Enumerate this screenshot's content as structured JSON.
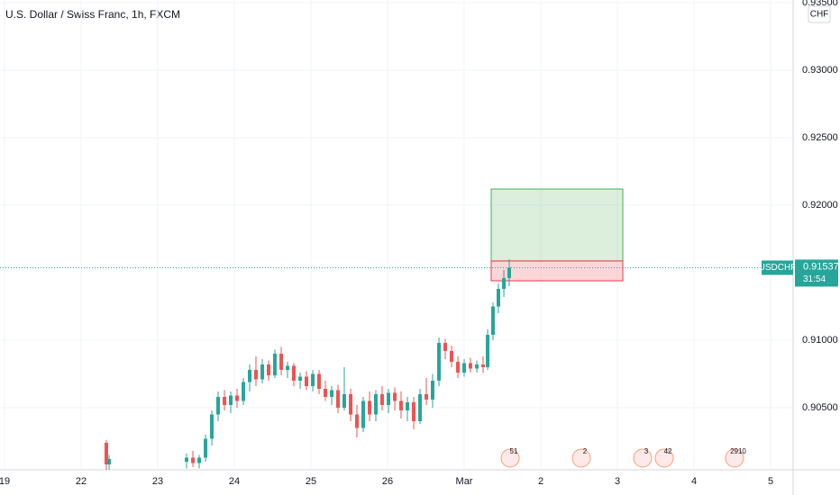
{
  "chart_data": {
    "type": "candlestick",
    "title": "U.S. Dollar / Swiss Franc, 1h, FXCM",
    "symbol": "USDCHF",
    "currency": "CHF",
    "last_price": 0.91537,
    "countdown": "31:54",
    "up_color": "#26a69a",
    "down_color": "#ef5350",
    "xlim": [
      -0.059,
      10.294
    ],
    "ylim": [
      0.9004,
      0.9352
    ],
    "xticks": [
      {
        "value": 0,
        "label": "19"
      },
      {
        "value": 1,
        "label": "22"
      },
      {
        "value": 2,
        "label": "23"
      },
      {
        "value": 3,
        "label": "24"
      },
      {
        "value": 4,
        "label": "25"
      },
      {
        "value": 5,
        "label": "26"
      },
      {
        "value": 6,
        "label": "Mar"
      },
      {
        "value": 7,
        "label": "2"
      },
      {
        "value": 8,
        "label": "3"
      },
      {
        "value": 9,
        "label": "4"
      },
      {
        "value": 10,
        "label": "5"
      }
    ],
    "yticks": [
      {
        "value": 0.935,
        "label": "0.93500"
      },
      {
        "value": 0.93,
        "label": "0.93000"
      },
      {
        "value": 0.925,
        "label": "0.92500"
      },
      {
        "value": 0.92,
        "label": "0.92000"
      },
      {
        "value": 0.91,
        "label": "0.91000"
      },
      {
        "value": 0.905,
        "label": "0.90500"
      }
    ],
    "grid": true,
    "x": [
      1.329,
      1.365,
      2.376,
      2.459,
      2.541,
      2.624,
      2.706,
      2.788,
      2.871,
      2.953,
      3.035,
      3.118,
      3.2,
      3.282,
      3.365,
      3.447,
      3.529,
      3.612,
      3.694,
      3.776,
      3.859,
      3.941,
      4.024,
      4.106,
      4.188,
      4.271,
      4.353,
      4.435,
      4.518,
      4.6,
      4.682,
      4.765,
      4.847,
      4.929,
      5.012,
      5.094,
      5.176,
      5.259,
      5.341,
      5.424,
      5.506,
      5.588,
      5.671,
      5.753,
      5.835,
      5.918,
      6.0,
      6.082,
      6.165,
      6.247,
      6.306,
      6.376,
      6.447,
      6.518,
      6.588
    ],
    "open": [
      0.9024,
      0.9008,
      0.901,
      0.9013,
      0.9009,
      0.9013,
      0.9027,
      0.9045,
      0.9058,
      0.9052,
      0.9059,
      0.9055,
      0.9069,
      0.9078,
      0.9071,
      0.9082,
      0.9074,
      0.909,
      0.9078,
      0.9081,
      0.907,
      0.9073,
      0.9066,
      0.9075,
      0.9064,
      0.9058,
      0.9063,
      0.905,
      0.906,
      0.9045,
      0.9035,
      0.9055,
      0.9045,
      0.906,
      0.9052,
      0.9061,
      0.9055,
      0.9048,
      0.9054,
      0.904,
      0.906,
      0.9056,
      0.907,
      0.9098,
      0.9092,
      0.9084,
      0.9076,
      0.9083,
      0.9079,
      0.9082,
      0.908,
      0.9104,
      0.9125,
      0.9138,
      0.9146
    ],
    "high": [
      0.9026,
      0.9015,
      0.9016,
      0.9018,
      0.9015,
      0.903,
      0.9048,
      0.9062,
      0.9063,
      0.9062,
      0.9064,
      0.9072,
      0.9082,
      0.9088,
      0.9086,
      0.9085,
      0.9093,
      0.9095,
      0.9084,
      0.9083,
      0.9076,
      0.9077,
      0.9078,
      0.9078,
      0.907,
      0.9066,
      0.9067,
      0.908,
      0.9064,
      0.9052,
      0.9058,
      0.9062,
      0.9063,
      0.9066,
      0.9064,
      0.9065,
      0.9062,
      0.9058,
      0.9058,
      0.9064,
      0.9072,
      0.9075,
      0.9102,
      0.9101,
      0.9096,
      0.9088,
      0.9086,
      0.9087,
      0.9085,
      0.9088,
      0.9108,
      0.9128,
      0.9142,
      0.9152,
      0.916
    ],
    "low": [
      0.9004,
      0.9004,
      0.9005,
      0.9006,
      0.9005,
      0.901,
      0.9022,
      0.904,
      0.9048,
      0.9046,
      0.905,
      0.9052,
      0.9062,
      0.9066,
      0.9068,
      0.907,
      0.9072,
      0.9074,
      0.9072,
      0.9066,
      0.9064,
      0.9063,
      0.9062,
      0.906,
      0.9055,
      0.9052,
      0.9046,
      0.9048,
      0.904,
      0.9028,
      0.9032,
      0.904,
      0.904,
      0.9048,
      0.9046,
      0.9048,
      0.9042,
      0.904,
      0.9034,
      0.9038,
      0.9052,
      0.905,
      0.9066,
      0.9086,
      0.908,
      0.9072,
      0.9073,
      0.9076,
      0.9076,
      0.9076,
      0.9078,
      0.91,
      0.912,
      0.9132,
      0.914
    ],
    "close": [
      0.9008,
      0.9012,
      0.9013,
      0.9009,
      0.9013,
      0.9027,
      0.9045,
      0.9058,
      0.9052,
      0.9059,
      0.9055,
      0.9069,
      0.9078,
      0.9071,
      0.9082,
      0.9074,
      0.909,
      0.9078,
      0.9081,
      0.907,
      0.9073,
      0.9066,
      0.9075,
      0.9064,
      0.9058,
      0.9063,
      0.905,
      0.906,
      0.9045,
      0.9035,
      0.9055,
      0.9045,
      0.906,
      0.9052,
      0.9061,
      0.9055,
      0.9048,
      0.9054,
      0.904,
      0.906,
      0.9056,
      0.907,
      0.9098,
      0.9092,
      0.9084,
      0.9076,
      0.9083,
      0.9079,
      0.9082,
      0.908,
      0.9104,
      0.9125,
      0.9138,
      0.9146,
      0.91537
    ],
    "position": {
      "x_start": 6.353,
      "x_end": 8.071,
      "take_profit": 0.9212,
      "entry": 0.91587,
      "stop_loss": 0.9144
    },
    "events": [
      {
        "x": 6.6,
        "label": "51"
      },
      {
        "x": 7.529,
        "label": "2"
      },
      {
        "x": 8.329,
        "label": "3"
      },
      {
        "x": 8.612,
        "label": "42"
      },
      {
        "x": 9.529,
        "label": "2910"
      }
    ]
  }
}
